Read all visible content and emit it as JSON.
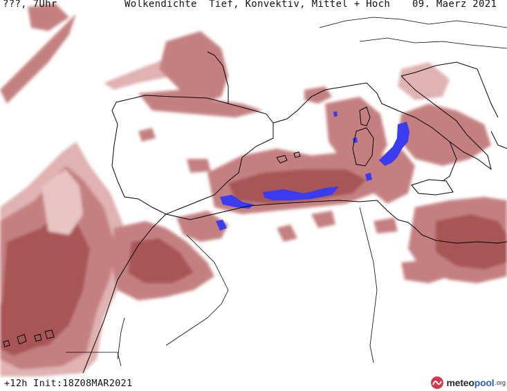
{
  "header": {
    "location": "???, 7Uhr",
    "title": "Wolkendichte  Tief, Konvektiv, Mittel + Hoch",
    "date": "09. Maerz 2021"
  },
  "footer": {
    "run_info": "+12h Init:18Z08MAR2021"
  },
  "logo": {
    "name_a": "meteo",
    "name_b": "pool",
    "tld": ".org"
  },
  "colors": {
    "cloud_light": "#e0b2b2",
    "cloud_mid": "#c48080",
    "cloud_dark": "#9e4646",
    "convective": "#3b3bf0",
    "coastline": "#000000",
    "background": "#ffffff"
  },
  "icons": [
    "meteopool-logo-icon"
  ]
}
